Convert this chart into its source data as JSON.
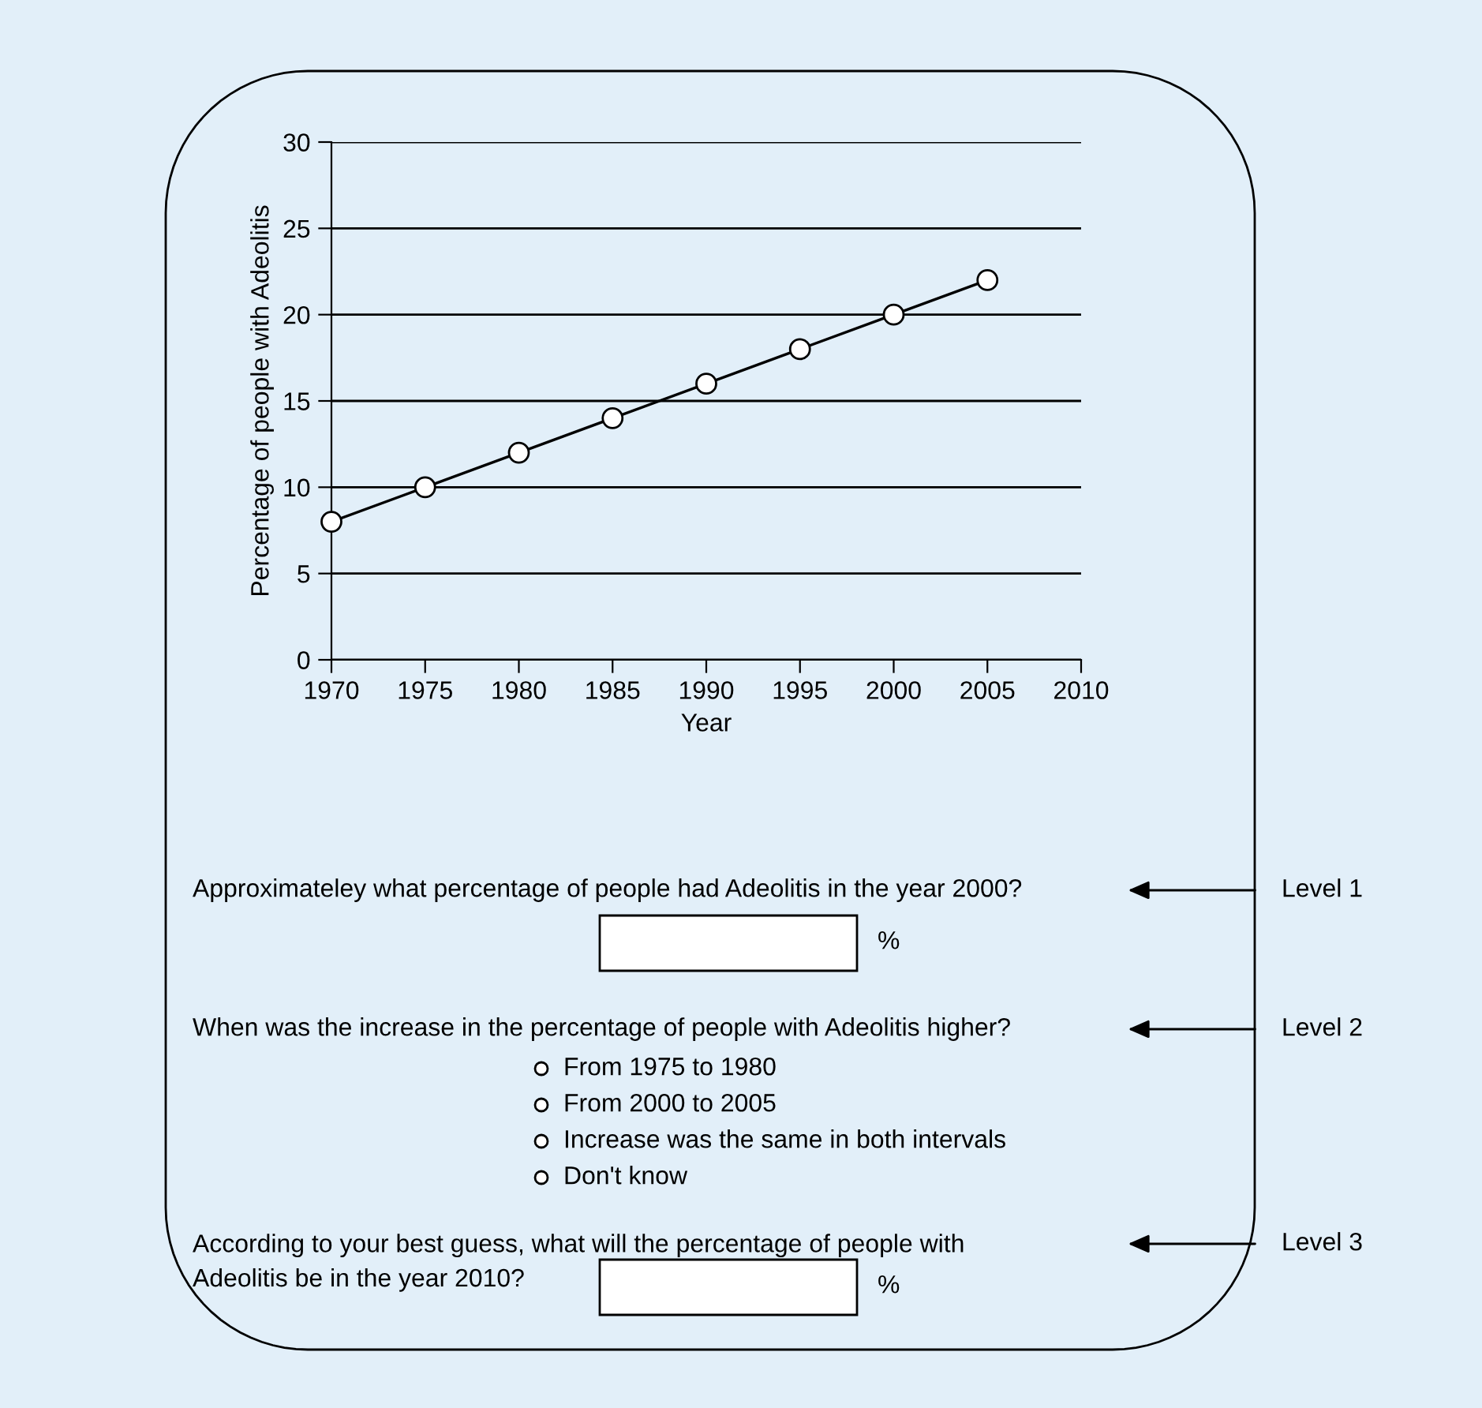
{
  "chart_data": {
    "type": "line",
    "xlabel": "Year",
    "ylabel": "Percentage of people with Adeolitis",
    "x": [
      1970,
      1975,
      1980,
      1985,
      1990,
      1995,
      2000,
      2005
    ],
    "series": [
      {
        "color": "#000000",
        "values": [
          8,
          10,
          12,
          14,
          16,
          18,
          20,
          22
        ]
      }
    ],
    "xlim": [
      1970,
      2010
    ],
    "xticks": [
      1970,
      1975,
      1980,
      1985,
      1990,
      1995,
      2000,
      2005,
      2010
    ],
    "ylim": [
      0,
      30
    ],
    "yticks": [
      0,
      5,
      10,
      15,
      20,
      25,
      30
    ],
    "grid": "y",
    "marker": "circle",
    "line_style": "solid",
    "legend": false,
    "annotations": [
      "Approximateley what percentage of people had Adeolitis in the year 2000?",
      "Level 1",
      "%",
      "When was the increase in the percentage of people with Adeolitis higher?",
      "Level 2",
      "From 1975 to 1980",
      "From 2000 to 2005",
      "Increase was the same in both intervals",
      "Don't know",
      "According to your best guess, what will the percentage of people with\nAdeolitis be in the year 2010?",
      "Level 3",
      "%"
    ]
  }
}
